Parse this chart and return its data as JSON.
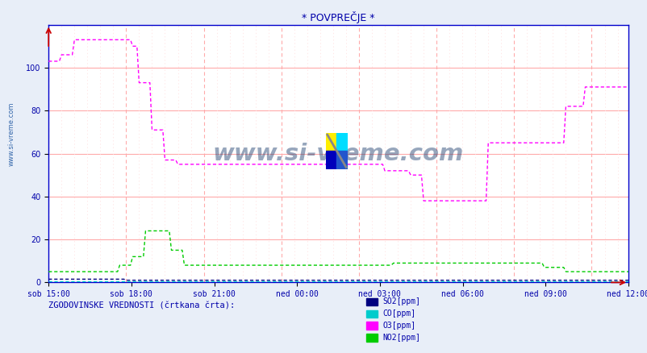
{
  "title": "* POVPREČJE *",
  "background_color": "#e8eef8",
  "plot_bg_color": "#ffffff",
  "ylim": [
    0,
    120
  ],
  "yticks": [
    0,
    20,
    40,
    60,
    80,
    100
  ],
  "x_labels": [
    "sob 15:00",
    "sob 18:00",
    "sob 21:00",
    "ned 00:00",
    "ned 03:00",
    "ned 06:00",
    "ned 09:00",
    "ned 12:00"
  ],
  "n_points": 270,
  "watermark": "www.si-vreme.com",
  "bottom_label": "ZGODOVINSKE VREDNOSTI (črtkana črta):",
  "legend": [
    {
      "label": "SO2[ppm]",
      "color": "#000080"
    },
    {
      "label": "CO[ppm]",
      "color": "#00cccc"
    },
    {
      "label": "O3[ppm]",
      "color": "#ff00ff"
    },
    {
      "label": "NO2[ppm]",
      "color": "#00cc00"
    }
  ],
  "so2_color": "#000080",
  "co_color": "#00cccc",
  "o3_color": "#ff00ff",
  "no2_color": "#00cc00",
  "grid_h_color": "#ffaaaa",
  "grid_v_major_color": "#ffaaaa",
  "grid_v_minor_color": "#ffdddd",
  "title_color": "#0000aa",
  "axis_label_color": "#0000aa",
  "spine_color": "#0000cc",
  "arrow_color": "#cc0000",
  "watermark_color": "#1a3a6b",
  "left_label_color": "#3366aa"
}
